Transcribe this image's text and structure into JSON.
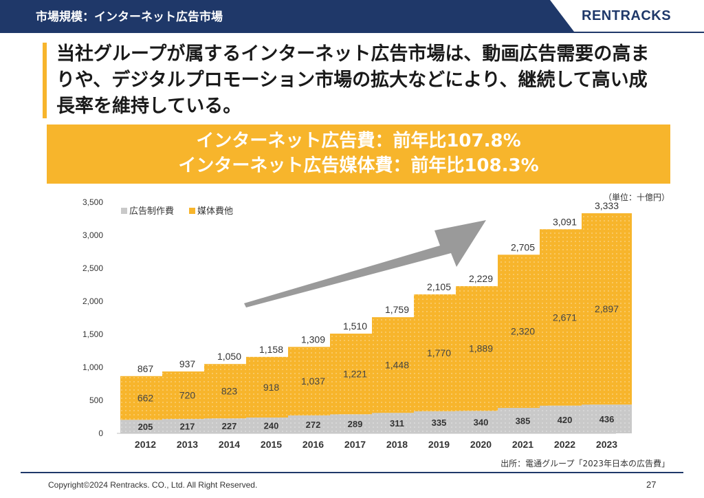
{
  "header": {
    "title": "市場規模：インターネット広告市場",
    "logo": "RENTRACKS"
  },
  "headline": "当社グループが属するインターネット広告市場は、動画広告需要の高まりや、デジタルプロモーション市場の拡大などにより、継続して高い成長率を維持している。",
  "callout": {
    "line1": "インターネット広告費：前年比107.8%",
    "line2": "インターネット広告媒体費：前年比108.3%"
  },
  "unit_note": "（単位：十億円）",
  "source_note": "出所：電通グループ「2023年日本の広告費」",
  "footer": {
    "copyright": "Copyright©2024 Rentracks. CO., Ltd. All Right Reserved.",
    "page": "27"
  },
  "colors": {
    "navy": "#1f3869",
    "accent": "#f7b52c",
    "production": "#c9c9c9",
    "media": "#f7b52c",
    "arrow": "#9a9a9a"
  },
  "chart_data": {
    "type": "bar",
    "stacked": true,
    "categories": [
      "2012",
      "2013",
      "2014",
      "2015",
      "2016",
      "2017",
      "2018",
      "2019",
      "2020",
      "2021",
      "2022",
      "2023"
    ],
    "series": [
      {
        "name": "広告制作費",
        "values": [
          205,
          217,
          227,
          240,
          272,
          289,
          311,
          335,
          340,
          385,
          420,
          436
        ]
      },
      {
        "name": "媒体費他",
        "values": [
          662,
          720,
          823,
          918,
          1037,
          1221,
          1448,
          1770,
          1889,
          2320,
          2671,
          2897
        ]
      }
    ],
    "totals": [
      867,
      937,
      1050,
      1158,
      1309,
      1510,
      1759,
      2105,
      2229,
      2705,
      3091,
      3333
    ],
    "total_labels": [
      "867",
      "937",
      "1,050",
      "1,158",
      "1,309",
      "1,510",
      "1,759",
      "2,105",
      "2,229",
      "2,705",
      "3,091",
      "3,333"
    ],
    "value_labels": [
      [
        "205",
        "217",
        "227",
        "240",
        "272",
        "289",
        "311",
        "335",
        "340",
        "385",
        "420",
        "436"
      ],
      [
        "662",
        "720",
        "823",
        "918",
        "1,037",
        "1,221",
        "1,448",
        "1,770",
        "1,889",
        "2,320",
        "2,671",
        "2,897"
      ]
    ],
    "yticks": [
      "0",
      "500",
      "1,000",
      "1,500",
      "2,000",
      "2,500",
      "3,000",
      "3,500"
    ],
    "ylim": [
      0,
      3500
    ],
    "legend_position": "top-left",
    "grid": false
  }
}
